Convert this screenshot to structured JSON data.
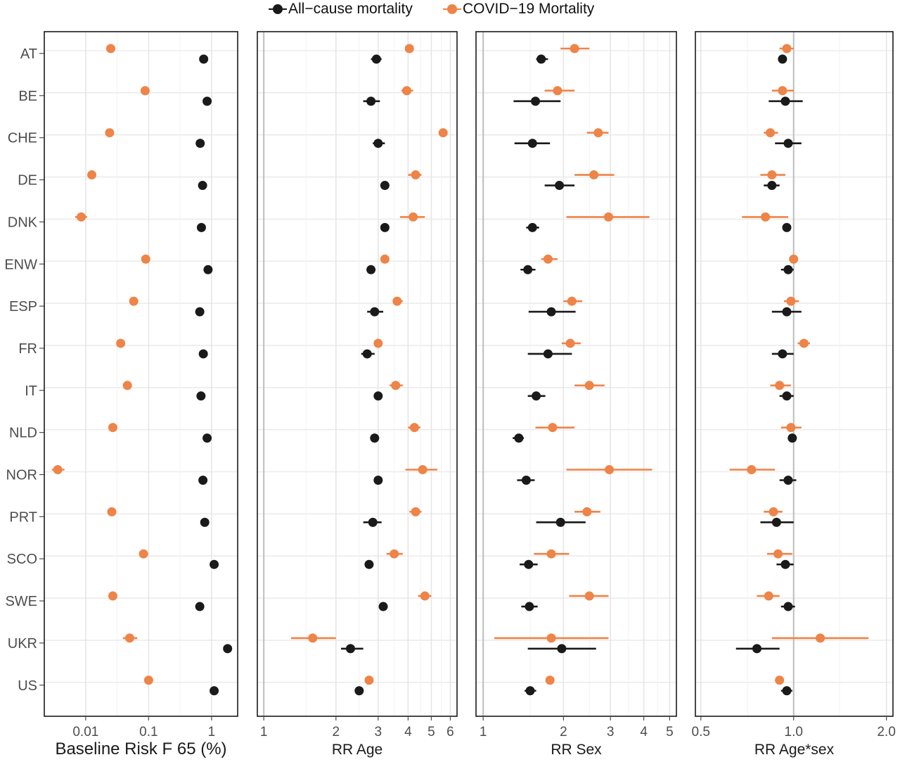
{
  "legend": {
    "items": [
      {
        "label": "All−cause mortality",
        "color": "#1a1a1a"
      },
      {
        "label": "COVID−19 Mortality",
        "color": "#ee8447"
      }
    ]
  },
  "chart_data": {
    "type": "scatter",
    "countries": [
      "AT",
      "BE",
      "CHE",
      "DE",
      "DNK",
      "ENW",
      "ESP",
      "FR",
      "IT",
      "NLD",
      "NOR",
      "PRT",
      "SCO",
      "SWE",
      "UKR",
      "US"
    ],
    "series": [
      {
        "name": "All−cause mortality",
        "color": "#1a1a1a"
      },
      {
        "name": "COVID−19 Mortality",
        "color": "#ee8447"
      }
    ],
    "panels": [
      {
        "xlabel": "Baseline Risk F 65 (%)",
        "scale": "log",
        "xlim": [
          0.0022,
          2.6
        ],
        "ticks": [
          0.01,
          0.1,
          1
        ],
        "tick_labels": [
          "0.01",
          "0.1",
          "1"
        ],
        "major_grid": [
          0.01,
          0.1,
          1
        ],
        "minor_grid": [
          0.0316,
          0.316
        ],
        "allcause": [
          {
            "v": 0.75
          },
          {
            "v": 0.85
          },
          {
            "v": 0.66
          },
          {
            "v": 0.72
          },
          {
            "v": 0.69
          },
          {
            "v": 0.88
          },
          {
            "v": 0.65
          },
          {
            "v": 0.74
          },
          {
            "v": 0.68
          },
          {
            "v": 0.85
          },
          {
            "v": 0.73
          },
          {
            "v": 0.78
          },
          {
            "v": 1.1
          },
          {
            "v": 0.65
          },
          {
            "v": 1.8,
            "lo": 1.7,
            "hi": 1.9
          },
          {
            "v": 1.1
          }
        ],
        "covid": [
          {
            "v": 0.025
          },
          {
            "v": 0.088
          },
          {
            "v": 0.024
          },
          {
            "v": 0.0125
          },
          {
            "v": 0.0085,
            "lo": 0.0068,
            "hi": 0.0105
          },
          {
            "v": 0.09
          },
          {
            "v": 0.058
          },
          {
            "v": 0.036
          },
          {
            "v": 0.046
          },
          {
            "v": 0.027
          },
          {
            "v": 0.0036,
            "lo": 0.0029,
            "hi": 0.0046
          },
          {
            "v": 0.026
          },
          {
            "v": 0.083
          },
          {
            "v": 0.027
          },
          {
            "v": 0.05,
            "lo": 0.039,
            "hi": 0.066
          },
          {
            "v": 0.1
          }
        ]
      },
      {
        "xlabel": "RR Age",
        "scale": "log",
        "xlim": [
          0.94,
          6.4
        ],
        "ticks": [
          1,
          2,
          3,
          4,
          5,
          6
        ],
        "tick_labels": [
          "1",
          "2",
          "3",
          "4",
          "5",
          "6"
        ],
        "major_grid": [
          2,
          3,
          4,
          5,
          6
        ],
        "minor_grid": [
          1.5,
          2.5,
          3.5,
          4.5,
          5.5
        ],
        "ref_line": 1,
        "allcause": [
          {
            "v": 2.95,
            "lo": 2.8,
            "hi": 3.1
          },
          {
            "v": 2.8,
            "lo": 2.6,
            "hi": 3.05
          },
          {
            "v": 3.0,
            "lo": 2.85,
            "hi": 3.2
          },
          {
            "v": 3.2,
            "lo": 3.1,
            "hi": 3.32
          },
          {
            "v": 3.2,
            "lo": 3.1,
            "hi": 3.3
          },
          {
            "v": 2.8,
            "lo": 2.7,
            "hi": 2.9
          },
          {
            "v": 2.9,
            "lo": 2.7,
            "hi": 3.15
          },
          {
            "v": 2.7,
            "lo": 2.55,
            "hi": 2.9
          },
          {
            "v": 3.0,
            "lo": 2.9,
            "hi": 3.1
          },
          {
            "v": 2.9,
            "lo": 2.8,
            "hi": 3.0
          },
          {
            "v": 3.0,
            "lo": 2.9,
            "hi": 3.1
          },
          {
            "v": 2.85,
            "lo": 2.6,
            "hi": 3.1
          },
          {
            "v": 2.75,
            "lo": 2.65,
            "hi": 2.85
          },
          {
            "v": 3.15,
            "lo": 3.05,
            "hi": 3.25
          },
          {
            "v": 2.3,
            "lo": 2.1,
            "hi": 2.6
          },
          {
            "v": 2.5,
            "lo": 2.4,
            "hi": 2.6
          }
        ],
        "covid": [
          {
            "v": 4.05,
            "lo": 3.9,
            "hi": 4.2
          },
          {
            "v": 3.95,
            "lo": 3.75,
            "hi": 4.2
          },
          {
            "v": 5.6,
            "lo": 5.4,
            "hi": 5.8
          },
          {
            "v": 4.3,
            "lo": 4.0,
            "hi": 4.55
          },
          {
            "v": 4.2,
            "lo": 3.7,
            "hi": 4.7
          },
          {
            "v": 3.2,
            "lo": 3.1,
            "hi": 3.3
          },
          {
            "v": 3.6,
            "lo": 3.45,
            "hi": 3.8
          },
          {
            "v": 3.0,
            "lo": 2.9,
            "hi": 3.1
          },
          {
            "v": 3.55,
            "lo": 3.35,
            "hi": 3.8
          },
          {
            "v": 4.25,
            "lo": 4.0,
            "hi": 4.5
          },
          {
            "v": 4.6,
            "lo": 3.9,
            "hi": 5.3
          },
          {
            "v": 4.3,
            "lo": 4.05,
            "hi": 4.55
          },
          {
            "v": 3.5,
            "lo": 3.25,
            "hi": 3.8
          },
          {
            "v": 4.7,
            "lo": 4.4,
            "hi": 5.0
          },
          {
            "v": 1.6,
            "lo": 1.3,
            "hi": 2.0
          },
          {
            "v": 2.75,
            "lo": 2.65,
            "hi": 2.85
          }
        ]
      },
      {
        "xlabel": "RR Sex",
        "scale": "log",
        "xlim": [
          0.94,
          5.3
        ],
        "ticks": [
          1,
          2,
          3,
          4,
          5
        ],
        "tick_labels": [
          "1",
          "2",
          "3",
          "4",
          "5"
        ],
        "major_grid": [
          2,
          3,
          4,
          5
        ],
        "minor_grid": [
          1.5,
          2.5,
          3.5,
          4.5
        ],
        "ref_line": 1,
        "allcause": [
          {
            "v": 1.65,
            "lo": 1.58,
            "hi": 1.75
          },
          {
            "v": 1.57,
            "lo": 1.3,
            "hi": 1.95
          },
          {
            "v": 1.53,
            "lo": 1.31,
            "hi": 1.78
          },
          {
            "v": 1.93,
            "lo": 1.7,
            "hi": 2.2
          },
          {
            "v": 1.53,
            "lo": 1.45,
            "hi": 1.62
          },
          {
            "v": 1.47,
            "lo": 1.38,
            "hi": 1.57
          },
          {
            "v": 1.8,
            "lo": 1.48,
            "hi": 2.22
          },
          {
            "v": 1.75,
            "lo": 1.47,
            "hi": 2.15
          },
          {
            "v": 1.58,
            "lo": 1.47,
            "hi": 1.71
          },
          {
            "v": 1.36,
            "lo": 1.29,
            "hi": 1.42
          },
          {
            "v": 1.45,
            "lo": 1.34,
            "hi": 1.56
          },
          {
            "v": 1.95,
            "lo": 1.58,
            "hi": 2.42
          },
          {
            "v": 1.48,
            "lo": 1.37,
            "hi": 1.6
          },
          {
            "v": 1.49,
            "lo": 1.39,
            "hi": 1.6
          },
          {
            "v": 1.97,
            "lo": 1.47,
            "hi": 2.65
          },
          {
            "v": 1.5,
            "lo": 1.43,
            "hi": 1.58
          }
        ],
        "covid": [
          {
            "v": 2.2,
            "lo": 1.95,
            "hi": 2.5
          },
          {
            "v": 1.9,
            "lo": 1.7,
            "hi": 2.2
          },
          {
            "v": 2.7,
            "lo": 2.45,
            "hi": 2.95
          },
          {
            "v": 2.6,
            "lo": 2.2,
            "hi": 3.1
          },
          {
            "v": 2.95,
            "lo": 2.05,
            "hi": 4.2
          },
          {
            "v": 1.75,
            "lo": 1.65,
            "hi": 1.9
          },
          {
            "v": 2.15,
            "lo": 2.0,
            "hi": 2.35
          },
          {
            "v": 2.12,
            "lo": 1.97,
            "hi": 2.32
          },
          {
            "v": 2.5,
            "lo": 2.2,
            "hi": 2.85
          },
          {
            "v": 1.82,
            "lo": 1.57,
            "hi": 2.2
          },
          {
            "v": 2.97,
            "lo": 2.05,
            "hi": 4.3
          },
          {
            "v": 2.45,
            "lo": 2.2,
            "hi": 2.75
          },
          {
            "v": 1.8,
            "lo": 1.55,
            "hi": 2.1
          },
          {
            "v": 2.5,
            "lo": 2.1,
            "hi": 2.95
          },
          {
            "v": 1.8,
            "lo": 1.1,
            "hi": 2.95
          },
          {
            "v": 1.78,
            "lo": 1.73,
            "hi": 1.84
          }
        ]
      },
      {
        "xlabel": "RR Age*sex",
        "scale": "log",
        "xlim": [
          0.48,
          2.1
        ],
        "ticks": [
          0.5,
          1.0,
          2.0
        ],
        "tick_labels": [
          "0.5",
          "1.0",
          "2.0"
        ],
        "major_grid": [
          0.5,
          2.0
        ],
        "minor_grid": [
          0.71,
          1.41
        ],
        "ref_line": 1.0,
        "allcause": [
          {
            "v": 0.92,
            "lo": 0.89,
            "hi": 0.95
          },
          {
            "v": 0.94,
            "lo": 0.83,
            "hi": 1.07
          },
          {
            "v": 0.96,
            "lo": 0.87,
            "hi": 1.06
          },
          {
            "v": 0.85,
            "lo": 0.8,
            "hi": 0.9
          },
          {
            "v": 0.95,
            "lo": 0.92,
            "hi": 0.98
          },
          {
            "v": 0.96,
            "lo": 0.91,
            "hi": 1.0
          },
          {
            "v": 0.95,
            "lo": 0.85,
            "hi": 1.06
          },
          {
            "v": 0.92,
            "lo": 0.85,
            "hi": 1.0
          },
          {
            "v": 0.95,
            "lo": 0.9,
            "hi": 1.0
          },
          {
            "v": 0.99,
            "lo": 0.96,
            "hi": 1.02
          },
          {
            "v": 0.96,
            "lo": 0.9,
            "hi": 1.02
          },
          {
            "v": 0.88,
            "lo": 0.78,
            "hi": 1.0
          },
          {
            "v": 0.94,
            "lo": 0.88,
            "hi": 1.0
          },
          {
            "v": 0.96,
            "lo": 0.91,
            "hi": 1.01
          },
          {
            "v": 0.76,
            "lo": 0.65,
            "hi": 0.9
          },
          {
            "v": 0.95,
            "lo": 0.91,
            "hi": 0.99
          }
        ],
        "covid": [
          {
            "v": 0.95,
            "lo": 0.9,
            "hi": 1.0
          },
          {
            "v": 0.92,
            "lo": 0.85,
            "hi": 1.0
          },
          {
            "v": 0.84,
            "lo": 0.8,
            "hi": 0.89
          },
          {
            "v": 0.85,
            "lo": 0.78,
            "hi": 0.94
          },
          {
            "v": 0.81,
            "lo": 0.68,
            "hi": 0.96
          },
          {
            "v": 1.0,
            "lo": 0.97,
            "hi": 1.03
          },
          {
            "v": 0.98,
            "lo": 0.93,
            "hi": 1.04
          },
          {
            "v": 1.08,
            "lo": 1.03,
            "hi": 1.13
          },
          {
            "v": 0.9,
            "lo": 0.84,
            "hi": 0.98
          },
          {
            "v": 0.98,
            "lo": 0.91,
            "hi": 1.06
          },
          {
            "v": 0.73,
            "lo": 0.62,
            "hi": 0.87
          },
          {
            "v": 0.86,
            "lo": 0.8,
            "hi": 0.92
          },
          {
            "v": 0.89,
            "lo": 0.82,
            "hi": 0.99
          },
          {
            "v": 0.83,
            "lo": 0.76,
            "hi": 0.9
          },
          {
            "v": 1.22,
            "lo": 0.85,
            "hi": 1.75
          },
          {
            "v": 0.9,
            "lo": 0.88,
            "hi": 0.93
          }
        ]
      }
    ]
  }
}
